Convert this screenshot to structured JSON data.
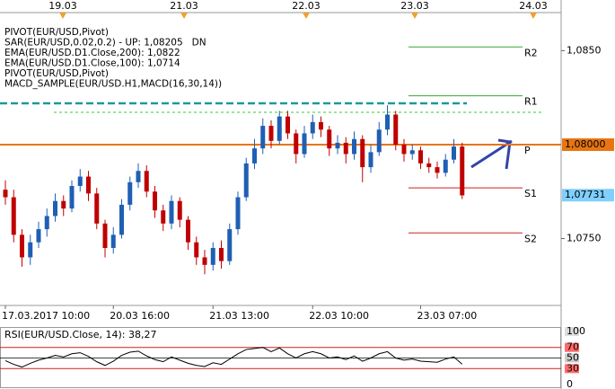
{
  "chart_data": {
    "type": "candlestick",
    "legend": [
      {
        "text": "PIVOT(EUR/USD,Pivot)",
        "color": "#000000"
      },
      {
        "text": "SAR(EUR/USD,0.02,0.2) - UP: 1,08205",
        "color": "#e9897e",
        "extra": "DN",
        "extra_color": "#1a9a9a"
      },
      {
        "text": "EMA(EUR/USD.D1.Close,200): 1,0822",
        "color": "#1a9a9a"
      },
      {
        "text": "EMA(EUR/USD.D1.Close,100): 1,0714",
        "color": "#8b0000"
      },
      {
        "text": "PIVOT(EUR/USD,Pivot)",
        "color": "#000000"
      },
      {
        "text": "MACD_SAMPLE(EUR/USD.H1,MACD(16,30,14))",
        "color": "#777777"
      }
    ],
    "date_markers": [
      "19.03",
      "21.03",
      "22.03",
      "23.03",
      "24.03"
    ],
    "categories": [
      "17.03.2017 10:00",
      null,
      null,
      null,
      null,
      null,
      null,
      null,
      null,
      null,
      null,
      null,
      null,
      "20.03 16:00",
      null,
      null,
      null,
      null,
      null,
      null,
      null,
      null,
      null,
      null,
      null,
      "21.03 13:00",
      null,
      null,
      null,
      null,
      null,
      null,
      null,
      null,
      null,
      null,
      null,
      "22.03 10:00",
      null,
      null,
      null,
      null,
      null,
      null,
      null,
      null,
      null,
      null,
      null,
      null,
      "23.03 07:00",
      null,
      null,
      null,
      null,
      null
    ],
    "open": [
      1.0776,
      1.0772,
      1.0752,
      1.074,
      1.0748,
      1.0755,
      1.0762,
      1.077,
      1.0766,
      1.0778,
      1.0783,
      1.0774,
      1.0758,
      1.0745,
      1.0752,
      1.0768,
      1.078,
      1.0786,
      1.0775,
      1.0765,
      1.0758,
      1.077,
      1.076,
      1.0748,
      1.074,
      1.0736,
      1.0745,
      1.0738,
      1.0755,
      1.0772,
      1.079,
      1.0798,
      1.081,
      1.0802,
      1.0815,
      1.0806,
      1.0795,
      1.0806,
      1.0812,
      1.0808,
      1.0798,
      1.0801,
      1.0795,
      1.0803,
      1.0788,
      1.0796,
      1.0808,
      1.0816,
      1.08,
      1.0795,
      1.0797,
      1.079,
      1.0788,
      1.0785,
      1.0792,
      1.0799
    ],
    "high": [
      1.0781,
      1.0776,
      1.0755,
      1.0752,
      1.0759,
      1.0766,
      1.0774,
      1.0773,
      1.0781,
      1.0787,
      1.0786,
      1.0777,
      1.076,
      1.0756,
      1.0771,
      1.0783,
      1.079,
      1.0789,
      1.0778,
      1.0768,
      1.0773,
      1.0772,
      1.0762,
      1.0751,
      1.0744,
      1.0748,
      1.0749,
      1.0758,
      1.0775,
      1.0793,
      1.0803,
      1.0814,
      1.0813,
      1.0818,
      1.0818,
      1.0808,
      1.081,
      1.0816,
      1.0815,
      1.081,
      1.0805,
      1.0804,
      1.0807,
      1.0805,
      1.08,
      1.0812,
      1.0821,
      1.0818,
      1.0803,
      1.08,
      1.0799,
      1.0793,
      1.0791,
      1.0795,
      1.0803,
      1.0801
    ],
    "low": [
      1.0768,
      1.0748,
      1.0735,
      1.0736,
      1.0745,
      1.0751,
      1.0759,
      1.0762,
      1.0764,
      1.0775,
      1.077,
      1.0755,
      1.074,
      1.0742,
      1.075,
      1.0765,
      1.0777,
      1.0772,
      1.0761,
      1.0754,
      1.0755,
      1.0756,
      1.0744,
      1.0736,
      1.0731,
      1.0733,
      1.0734,
      1.0736,
      1.0752,
      1.077,
      1.0787,
      1.0795,
      1.0798,
      1.08,
      1.0803,
      1.079,
      1.0793,
      1.0803,
      1.0804,
      1.0794,
      1.0795,
      1.079,
      1.0792,
      1.078,
      1.0785,
      1.0794,
      1.0805,
      1.0797,
      1.0791,
      1.0792,
      1.0787,
      1.0785,
      1.0782,
      1.0783,
      1.079,
      1.0771
    ],
    "close": [
      1.0772,
      1.0752,
      1.074,
      1.0748,
      1.0755,
      1.0762,
      1.077,
      1.0766,
      1.0778,
      1.0783,
      1.0774,
      1.0758,
      1.0745,
      1.0752,
      1.0768,
      1.078,
      1.0786,
      1.0775,
      1.0765,
      1.0758,
      1.077,
      1.076,
      1.0748,
      1.074,
      1.0736,
      1.0745,
      1.0738,
      1.0755,
      1.0772,
      1.079,
      1.0798,
      1.081,
      1.0802,
      1.0815,
      1.0806,
      1.0795,
      1.0806,
      1.0812,
      1.0808,
      1.0798,
      1.0801,
      1.0795,
      1.0803,
      1.0788,
      1.0796,
      1.0808,
      1.0816,
      1.08,
      1.0795,
      1.0797,
      1.079,
      1.0788,
      1.0785,
      1.0792,
      1.0799,
      1.0773
    ],
    "up_color": "#1f5fb4",
    "down_color": "#c00000",
    "ylim": [
      1.0723,
      1.0877
    ],
    "yticks": [
      {
        "value": 1.085,
        "label": "1,0850"
      },
      {
        "value": 1.075,
        "label": "1,0750"
      }
    ],
    "pivots": [
      {
        "name": "R2",
        "value": 1.0852,
        "color": "#33aa33"
      },
      {
        "name": "R1",
        "value": 1.0826,
        "color": "#33aa33"
      },
      {
        "name": "P",
        "value": 1.08,
        "color": "#e87511"
      },
      {
        "name": "S1",
        "value": 1.0777,
        "color": "#cc2222"
      },
      {
        "name": "S2",
        "value": 1.0753,
        "color": "#cc2222"
      }
    ],
    "ema200_level": 1.0822,
    "price_labels": [
      {
        "value": 1.08,
        "label": "1,08000",
        "color": "#e87511"
      },
      {
        "value": 1.07731,
        "label": "1,07731",
        "color": "#7fcfff"
      }
    ],
    "rsi": {
      "title": "RSI(EUR/USD.Close, 14): 38,27",
      "values": [
        45,
        38,
        33,
        40,
        46,
        50,
        55,
        52,
        58,
        60,
        53,
        43,
        36,
        44,
        55,
        61,
        63,
        54,
        47,
        43,
        52,
        46,
        40,
        36,
        34,
        41,
        38,
        48,
        58,
        66,
        68,
        70,
        62,
        69,
        58,
        50,
        58,
        62,
        58,
        50,
        52,
        47,
        54,
        44,
        50,
        58,
        62,
        50,
        46,
        48,
        44,
        43,
        42,
        48,
        52,
        38.27
      ],
      "ylim": [
        0,
        100
      ],
      "yticks": [
        100,
        70,
        50,
        30,
        0
      ],
      "levels": [
        70,
        30
      ],
      "color": "#000000"
    }
  }
}
